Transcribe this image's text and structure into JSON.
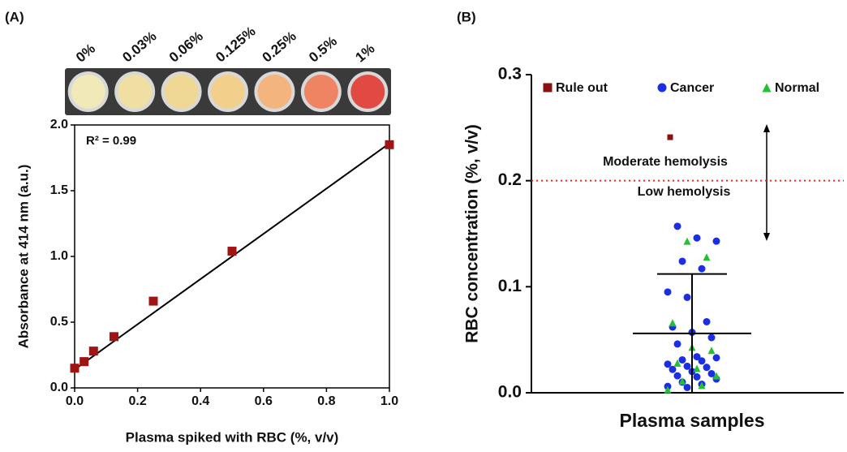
{
  "chart_data": [
    {
      "type": "scatter",
      "panel_label": "(A)",
      "wells": [
        {
          "label": "0%",
          "color": "#f2e9b8"
        },
        {
          "label": "0.03%",
          "color": "#f0dfa2"
        },
        {
          "label": "0.06%",
          "color": "#efd894"
        },
        {
          "label": "0.125%",
          "color": "#f2cf8a"
        },
        {
          "label": "0.25%",
          "color": "#f3b47e"
        },
        {
          "label": "0.5%",
          "color": "#ee8462"
        },
        {
          "label": "1%",
          "color": "#e04a42"
        }
      ],
      "annotation": "R² = 0.99",
      "x_label": "Plasma spiked with RBC (%, v/v)",
      "y_label": "Absorbance at 414 nm (a.u.)",
      "x": [
        0,
        0.03,
        0.06,
        0.125,
        0.25,
        0.5,
        1
      ],
      "values": [
        0.15,
        0.2,
        0.28,
        0.39,
        0.66,
        1.04,
        1.85
      ],
      "color": "#a01414",
      "trendline": {
        "x": [
          0,
          1
        ],
        "values": [
          0.14,
          1.86
        ],
        "color": "#000000"
      },
      "xlim": [
        0,
        1
      ],
      "xticks": [
        {
          "value": 0,
          "label": "0.0"
        },
        0.2,
        0.4,
        0.6,
        0.8,
        {
          "value": 1,
          "label": "1.0"
        }
      ],
      "ylim": [
        0,
        2
      ],
      "yticks": [
        {
          "value": 0,
          "label": "0.0"
        },
        0.5,
        {
          "value": 1,
          "label": "1.0"
        },
        1.5,
        {
          "value": 2,
          "label": "2.0"
        }
      ]
    },
    {
      "type": "strip",
      "panel_label": "(B)",
      "x_label": "Plasma samples",
      "y_label": "RBC concentration (%, v/v)",
      "series": [
        {
          "name": "Rule out",
          "color": "#8b1010",
          "marker": "square",
          "values": [
            0.241
          ]
        },
        {
          "name": "Cancer",
          "color": "#1a2ee6",
          "marker": "circle",
          "values": [
            0.157,
            0.146,
            0.143,
            0.124,
            0.117,
            0.095,
            0.09,
            0.067,
            0.062,
            0.057,
            0.052,
            0.046,
            0.034,
            0.033,
            0.031,
            0.03,
            0.027,
            0.025,
            0.024,
            0.022,
            0.02,
            0.018,
            0.016,
            0.015,
            0.013,
            0.01,
            0.008,
            0.006,
            0.005
          ]
        },
        {
          "name": "Normal",
          "color": "#22c032",
          "marker": "triangle",
          "values": [
            0.143,
            0.128,
            0.066,
            0.043,
            0.04,
            0.028,
            0.023,
            0.016,
            0.011,
            0.007,
            0.003
          ]
        }
      ],
      "mean": 0.056,
      "sd": 0.056,
      "threshold": {
        "value": 0.2,
        "color": "#ff2020"
      },
      "annotations": [
        "Moderate hemolysis",
        "Low hemolysis"
      ],
      "ylim": [
        0,
        0.3
      ],
      "yticks": [
        {
          "value": 0,
          "label": "0.0"
        },
        0.1,
        0.2,
        0.3
      ]
    }
  ]
}
